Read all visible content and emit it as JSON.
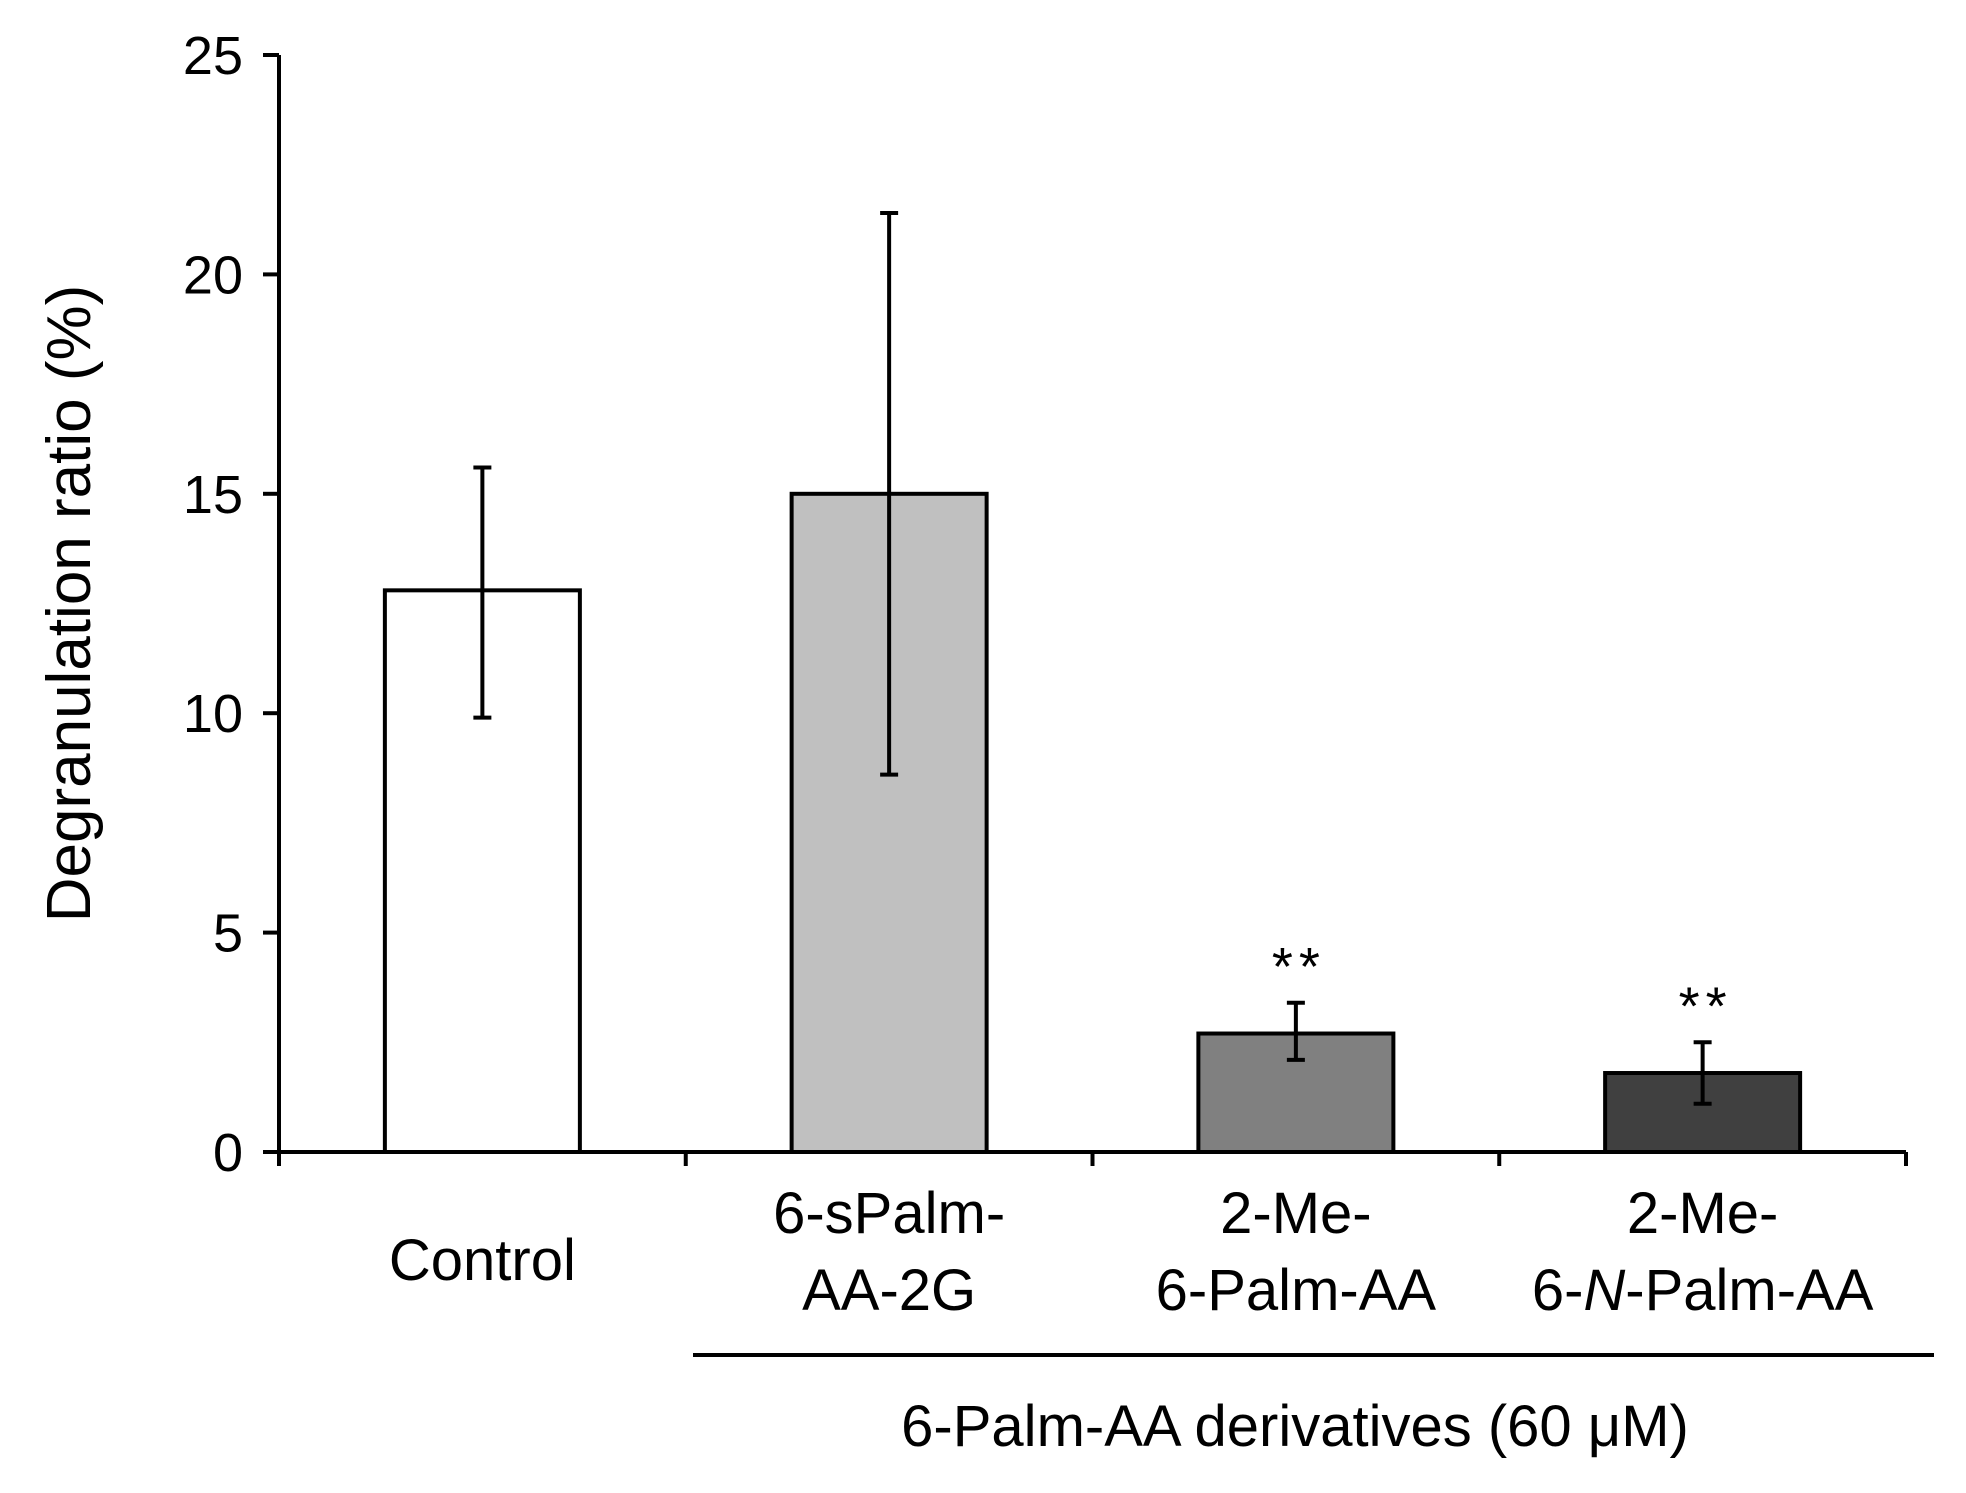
{
  "chart_data": {
    "type": "bar",
    "title": "",
    "xlabel": "",
    "ylabel": "Degranulation ratio (%)",
    "ylim": [
      0,
      25
    ],
    "yticks": [
      "0",
      "5",
      "10",
      "15",
      "20",
      "25"
    ],
    "grid": false,
    "legend": "none",
    "categories": [
      {
        "lines": [
          "Control"
        ]
      },
      {
        "lines": [
          "6-sPalm-",
          "AA-2G"
        ]
      },
      {
        "lines": [
          "2-Me-",
          "6-Palm-AA"
        ]
      },
      {
        "lines": [
          "2-Me-",
          "6-",
          "N",
          "-Palm-AA"
        ]
      }
    ],
    "series": [
      {
        "name": "Degranulation ratio",
        "values": [
          12.8,
          15.0,
          2.7,
          1.8
        ],
        "error_low": [
          9.9,
          8.6,
          2.1,
          1.1
        ],
        "error_high": [
          15.6,
          21.4,
          3.4,
          2.5
        ],
        "significance": [
          "",
          "",
          "**",
          "**"
        ],
        "fill_colors": [
          "#ffffff",
          "#c0c0c0",
          "#808080",
          "#404040"
        ]
      }
    ],
    "group_annotation": "6-Palm-AA derivatives (60 μM)"
  }
}
